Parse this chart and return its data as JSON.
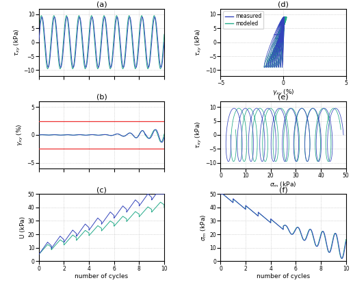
{
  "blue": "#3344bb",
  "green": "#22aa88",
  "red": "#ee3333",
  "lw": 0.7,
  "panel_a": {
    "ylabel": "$\\tau_{xy}$ (kPa)",
    "ylim": [
      -12,
      12
    ],
    "xlim": [
      0,
      10
    ],
    "yticks": [
      -10,
      -5,
      0,
      5,
      10
    ],
    "xticks": [
      0,
      2,
      4,
      6,
      8,
      10
    ],
    "label": "(a)"
  },
  "panel_b": {
    "ylabel": "$\\gamma_{xy}$ (%)",
    "ylim": [
      -6,
      6
    ],
    "xlim": [
      0,
      10
    ],
    "yticks": [
      -5,
      0,
      5
    ],
    "xticks": [
      0,
      2,
      4,
      6,
      8,
      10
    ],
    "hline_pos": 2.5,
    "hline_neg": -2.5,
    "label": "(b)"
  },
  "panel_c": {
    "ylabel": "U (kPa)",
    "xlabel": "number of cycles",
    "ylim": [
      0,
      50
    ],
    "xlim": [
      0,
      10
    ],
    "yticks": [
      0,
      10,
      20,
      30,
      40,
      50
    ],
    "xticks": [
      0,
      2,
      4,
      6,
      8,
      10
    ],
    "label": "(c)"
  },
  "panel_d": {
    "ylabel": "$\\tau_{xy}$ (kPa)",
    "xlabel": "$\\gamma_{xy}$ (%)",
    "ylim": [
      -12,
      12
    ],
    "xlim": [
      -5,
      5
    ],
    "yticks": [
      -10,
      -5,
      0,
      5,
      10
    ],
    "xticks": [
      -5,
      0,
      5
    ],
    "label": "(d)"
  },
  "panel_e": {
    "ylabel": "$\\tau_{xy}$ (kPa)",
    "xlabel": "$\\sigma_m$ (kPa)",
    "ylim": [
      -12,
      12
    ],
    "xlim": [
      0,
      50
    ],
    "yticks": [
      -10,
      -5,
      0,
      5,
      10
    ],
    "xticks": [
      0,
      10,
      20,
      30,
      40,
      50
    ],
    "label": "(e)"
  },
  "panel_f": {
    "ylabel": "$\\sigma_m$ (kPa)",
    "xlabel": "number of cycles",
    "ylim": [
      0,
      50
    ],
    "xlim": [
      0,
      10
    ],
    "yticks": [
      0,
      10,
      20,
      30,
      40,
      50
    ],
    "xticks": [
      0,
      2,
      4,
      6,
      8,
      10
    ],
    "label": "(f)"
  },
  "legend_measured": "measured",
  "legend_modeled": "modeled"
}
